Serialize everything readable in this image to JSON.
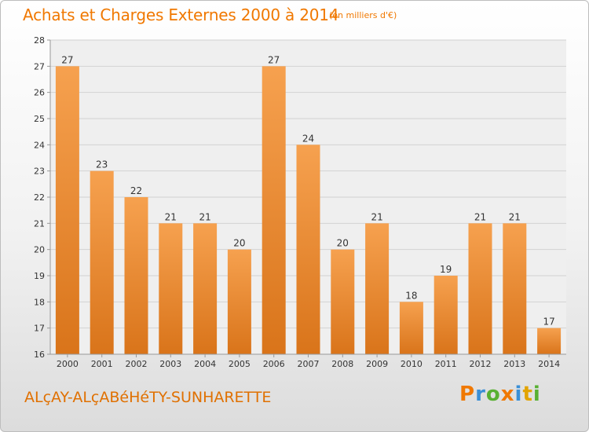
{
  "header": {
    "title": "Achats et Charges Externes 2000 à 2014",
    "unit": "(en milliers d'€)"
  },
  "footer": {
    "commune": "ALçAY-ALçABéHéTY-SUNHARETTE",
    "logo_text": "Proxiti"
  },
  "colors": {
    "accent": "#f07800",
    "bar_top": "#f6a14f",
    "bar_bottom": "#d9741a",
    "logo": [
      "#f07800",
      "#3a8fd6",
      "#58b032",
      "#f07800",
      "#3a8fd6",
      "#e2a400",
      "#58b032"
    ]
  },
  "chart_data": {
    "type": "bar",
    "categories": [
      "2000",
      "2001",
      "2002",
      "2003",
      "2004",
      "2005",
      "2006",
      "2007",
      "2008",
      "2009",
      "2010",
      "2011",
      "2012",
      "2013",
      "2014"
    ],
    "values": [
      27,
      23,
      22,
      21,
      21,
      20,
      27,
      24,
      20,
      21,
      18,
      19,
      21,
      21,
      17
    ],
    "title": "Achats et Charges Externes 2000 à 2014",
    "xlabel": "",
    "ylabel": "",
    "ylim": [
      16,
      28
    ],
    "yticks": [
      16,
      17,
      18,
      19,
      20,
      21,
      22,
      23,
      24,
      25,
      26,
      27,
      28
    ],
    "grid": true,
    "legend": "none"
  }
}
